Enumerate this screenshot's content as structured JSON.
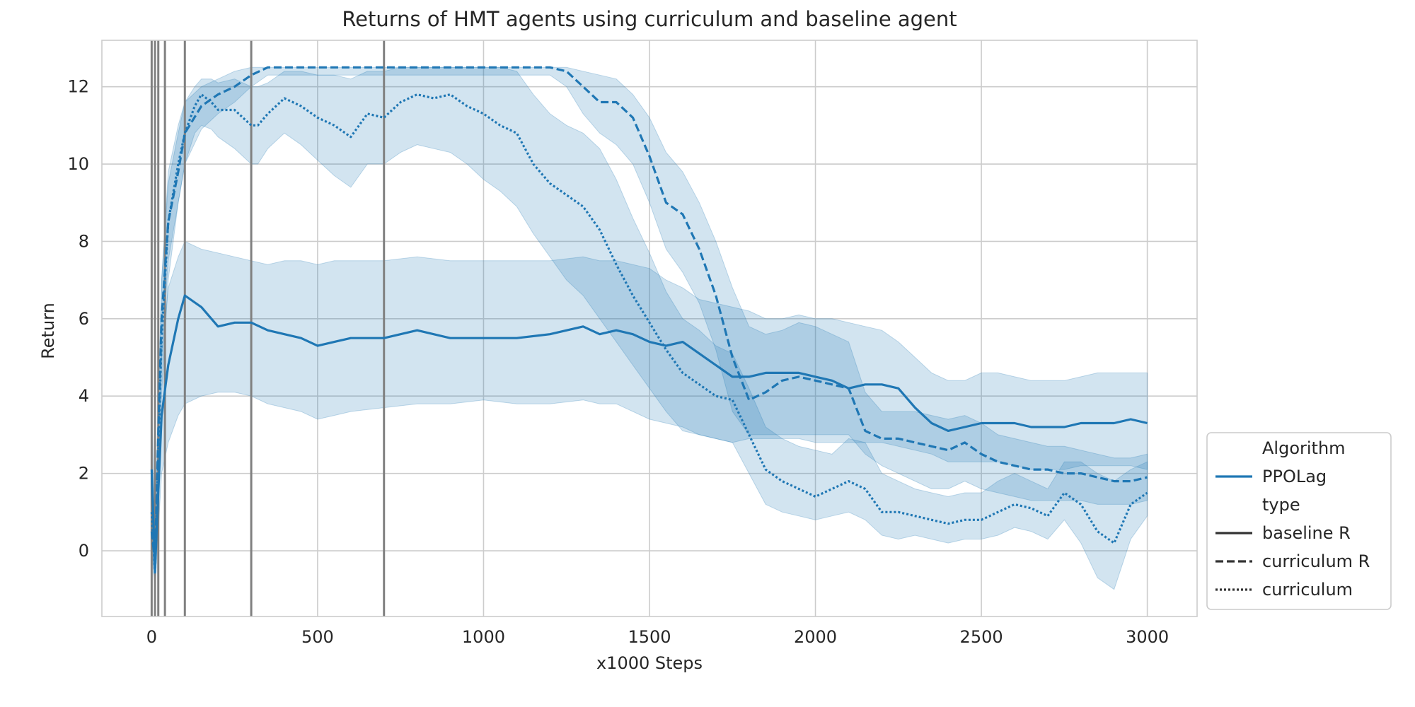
{
  "chart_data": {
    "type": "line",
    "title": "Returns of HMT agents using curriculum and baseline agent",
    "xlabel": "x1000 Steps",
    "ylabel": "Return",
    "xlim": [
      -150,
      3150
    ],
    "ylim": [
      -1.7,
      13.2
    ],
    "xticks": [
      0,
      500,
      1000,
      1500,
      2000,
      2500,
      3000
    ],
    "yticks": [
      0,
      2,
      4,
      6,
      8,
      10,
      12
    ],
    "xtick_labels": [
      "0",
      "500",
      "1000",
      "1500",
      "2000",
      "2500",
      "3000"
    ],
    "ytick_labels": [
      "0",
      "2",
      "4",
      "6",
      "8",
      "10",
      "12"
    ],
    "grid": true,
    "legend_position": "lower-right outside",
    "vertical_markers": [
      0,
      10,
      20,
      40,
      100,
      300,
      700
    ],
    "colors": {
      "series": "#1f77b4",
      "marker": "#808080",
      "grid": "#cccccc",
      "band": "#1f77b4"
    },
    "legend": [
      {
        "text": "Algorithm",
        "kind": "header"
      },
      {
        "text": "PPOLag",
        "kind": "color"
      },
      {
        "text": "type",
        "kind": "header"
      },
      {
        "text": "baseline R",
        "kind": "solid"
      },
      {
        "text": "curriculum R",
        "kind": "dashed"
      },
      {
        "text": "curriculum",
        "kind": "dotted"
      }
    ],
    "series": [
      {
        "name": "baseline R",
        "style": "solid",
        "x": [
          0,
          10,
          20,
          30,
          50,
          80,
          100,
          150,
          200,
          250,
          300,
          350,
          400,
          450,
          500,
          550,
          600,
          700,
          800,
          900,
          1000,
          1100,
          1200,
          1300,
          1350,
          1400,
          1450,
          1500,
          1550,
          1600,
          1650,
          1700,
          1750,
          1800,
          1850,
          1900,
          1950,
          2000,
          2050,
          2100,
          2150,
          2200,
          2250,
          2300,
          2350,
          2400,
          2450,
          2500,
          2550,
          2600,
          2650,
          2700,
          2750,
          2800,
          2850,
          2900,
          2950,
          3000
        ],
        "y": [
          2.1,
          -0.5,
          1.5,
          3.5,
          4.8,
          6.0,
          6.6,
          6.3,
          5.8,
          5.9,
          5.9,
          5.7,
          5.6,
          5.5,
          5.3,
          5.4,
          5.5,
          5.5,
          5.7,
          5.5,
          5.5,
          5.5,
          5.6,
          5.8,
          5.6,
          5.7,
          5.6,
          5.4,
          5.3,
          5.4,
          5.1,
          4.8,
          4.5,
          4.5,
          4.6,
          4.6,
          4.6,
          4.5,
          4.4,
          4.2,
          4.3,
          4.3,
          4.2,
          3.7,
          3.3,
          3.1,
          3.2,
          3.3,
          3.3,
          3.3,
          3.2,
          3.2,
          3.2,
          3.3,
          3.3,
          3.3,
          3.4,
          3.3
        ],
        "lower": [
          0.5,
          -1.0,
          0.5,
          2.0,
          2.8,
          3.5,
          3.8,
          4.0,
          4.1,
          4.1,
          4.0,
          3.8,
          3.7,
          3.6,
          3.4,
          3.5,
          3.6,
          3.7,
          3.8,
          3.8,
          3.9,
          3.8,
          3.8,
          3.9,
          3.8,
          3.8,
          3.6,
          3.4,
          3.3,
          3.2,
          3.0,
          2.9,
          2.8,
          2.9,
          2.9,
          2.9,
          2.9,
          2.8,
          2.8,
          2.8,
          2.8,
          2.8,
          2.7,
          2.6,
          2.5,
          2.3,
          2.3,
          2.3,
          2.3,
          2.2,
          2.1,
          2.1,
          2.1,
          2.2,
          2.2,
          2.2,
          2.2,
          2.1
        ],
        "upper": [
          3.8,
          0.5,
          3.0,
          5.0,
          6.8,
          7.6,
          8.0,
          7.8,
          7.7,
          7.6,
          7.5,
          7.4,
          7.5,
          7.5,
          7.4,
          7.5,
          7.5,
          7.5,
          7.6,
          7.5,
          7.5,
          7.5,
          7.5,
          7.6,
          7.5,
          7.5,
          7.4,
          7.3,
          7.0,
          6.8,
          6.5,
          6.4,
          6.3,
          6.2,
          6.0,
          6.0,
          6.1,
          6.0,
          6.0,
          5.9,
          5.8,
          5.7,
          5.4,
          5.0,
          4.6,
          4.4,
          4.4,
          4.6,
          4.6,
          4.5,
          4.4,
          4.4,
          4.4,
          4.5,
          4.6,
          4.6,
          4.6,
          4.6
        ]
      },
      {
        "name": "curriculum R",
        "style": "dashed",
        "x": [
          0,
          10,
          20,
          30,
          50,
          80,
          100,
          150,
          200,
          250,
          300,
          350,
          400,
          500,
          600,
          700,
          800,
          900,
          1000,
          1100,
          1200,
          1250,
          1300,
          1350,
          1400,
          1450,
          1500,
          1550,
          1600,
          1650,
          1700,
          1750,
          1800,
          1850,
          1900,
          1950,
          2000,
          2050,
          2100,
          2150,
          2200,
          2250,
          2300,
          2350,
          2400,
          2450,
          2500,
          2550,
          2600,
          2650,
          2700,
          2750,
          2800,
          2850,
          2900,
          2950,
          3000
        ],
        "y": [
          0.5,
          -0.3,
          3.0,
          6.0,
          8.5,
          9.8,
          10.8,
          11.5,
          11.8,
          12.0,
          12.3,
          12.5,
          12.5,
          12.5,
          12.5,
          12.5,
          12.5,
          12.5,
          12.5,
          12.5,
          12.5,
          12.4,
          12.0,
          11.6,
          11.6,
          11.2,
          10.2,
          9.0,
          8.7,
          7.8,
          6.6,
          5.0,
          3.9,
          4.1,
          4.4,
          4.5,
          4.4,
          4.3,
          4.2,
          3.1,
          2.9,
          2.9,
          2.8,
          2.7,
          2.6,
          2.8,
          2.5,
          2.3,
          2.2,
          2.1,
          2.1,
          2.0,
          2.0,
          1.9,
          1.8,
          1.8,
          1.9
        ],
        "lower": [
          0.0,
          -0.7,
          2.0,
          5.0,
          7.5,
          9.0,
          10.0,
          10.9,
          11.3,
          11.6,
          12.0,
          12.3,
          12.3,
          12.3,
          12.3,
          12.3,
          12.3,
          12.3,
          12.3,
          12.3,
          12.3,
          12.0,
          11.3,
          10.8,
          10.5,
          10.0,
          9.0,
          7.8,
          7.2,
          6.4,
          5.2,
          3.6,
          3.0,
          3.0,
          3.0,
          3.0,
          3.0,
          3.0,
          3.0,
          2.5,
          2.2,
          2.0,
          1.8,
          1.6,
          1.6,
          1.8,
          1.6,
          1.5,
          1.4,
          1.3,
          1.3,
          1.3,
          1.3,
          1.2,
          1.2,
          1.2,
          1.3
        ],
        "upper": [
          1.5,
          0.5,
          4.0,
          7.0,
          9.5,
          10.8,
          11.6,
          12.0,
          12.2,
          12.4,
          12.5,
          12.5,
          12.5,
          12.5,
          12.5,
          12.5,
          12.5,
          12.5,
          12.5,
          12.5,
          12.5,
          12.5,
          12.4,
          12.3,
          12.2,
          11.8,
          11.2,
          10.3,
          9.8,
          9.0,
          8.0,
          6.8,
          5.8,
          5.6,
          5.7,
          5.9,
          5.8,
          5.6,
          5.4,
          4.1,
          3.6,
          3.6,
          3.6,
          3.5,
          3.4,
          3.5,
          3.3,
          3.0,
          2.9,
          2.8,
          2.7,
          2.7,
          2.6,
          2.5,
          2.4,
          2.4,
          2.5
        ]
      },
      {
        "name": "curriculum",
        "style": "dotted",
        "x": [
          0,
          10,
          20,
          30,
          50,
          80,
          100,
          130,
          150,
          180,
          200,
          250,
          300,
          320,
          350,
          400,
          450,
          500,
          550,
          600,
          650,
          700,
          750,
          800,
          850,
          900,
          950,
          1000,
          1050,
          1100,
          1150,
          1200,
          1250,
          1300,
          1350,
          1400,
          1450,
          1500,
          1550,
          1600,
          1650,
          1700,
          1750,
          1800,
          1850,
          1900,
          1950,
          2000,
          2050,
          2100,
          2150,
          2200,
          2250,
          2300,
          2350,
          2400,
          2450,
          2500,
          2550,
          2600,
          2650,
          2700,
          2750,
          2800,
          2850,
          2900,
          2950,
          3000
        ],
        "y": [
          1.0,
          -0.6,
          2.5,
          5.5,
          8.5,
          10.0,
          10.8,
          11.5,
          11.8,
          11.6,
          11.4,
          11.4,
          11.0,
          11.0,
          11.3,
          11.7,
          11.5,
          11.2,
          11.0,
          10.7,
          11.3,
          11.2,
          11.6,
          11.8,
          11.7,
          11.8,
          11.5,
          11.3,
          11.0,
          10.8,
          10.0,
          9.5,
          9.2,
          8.9,
          8.3,
          7.4,
          6.6,
          5.9,
          5.2,
          4.6,
          4.3,
          4.0,
          3.9,
          3.0,
          2.1,
          1.8,
          1.6,
          1.4,
          1.6,
          1.8,
          1.6,
          1.0,
          1.0,
          0.9,
          0.8,
          0.7,
          0.8,
          0.8,
          1.0,
          1.2,
          1.1,
          0.9,
          1.5,
          1.2,
          0.5,
          0.2,
          1.2,
          1.5
        ],
        "lower": [
          0.0,
          -1.0,
          1.5,
          4.0,
          7.0,
          9.0,
          10.0,
          10.8,
          11.0,
          10.9,
          10.7,
          10.4,
          10.0,
          10.0,
          10.4,
          10.8,
          10.5,
          10.1,
          9.7,
          9.4,
          10.0,
          10.0,
          10.3,
          10.5,
          10.4,
          10.3,
          10.0,
          9.6,
          9.3,
          8.9,
          8.2,
          7.6,
          7.0,
          6.6,
          6.0,
          5.4,
          4.8,
          4.2,
          3.6,
          3.1,
          3.0,
          2.9,
          2.8,
          2.0,
          1.2,
          1.0,
          0.9,
          0.8,
          0.9,
          1.0,
          0.8,
          0.4,
          0.3,
          0.4,
          0.3,
          0.2,
          0.3,
          0.3,
          0.4,
          0.6,
          0.5,
          0.3,
          0.8,
          0.2,
          -0.7,
          -1.0,
          0.3,
          0.9
        ],
        "upper": [
          2.0,
          0.2,
          3.5,
          7.0,
          9.8,
          11.0,
          11.6,
          12.0,
          12.2,
          12.2,
          12.1,
          12.2,
          12.0,
          12.0,
          12.1,
          12.4,
          12.4,
          12.3,
          12.3,
          12.2,
          12.4,
          12.4,
          12.5,
          12.5,
          12.5,
          12.5,
          12.5,
          12.5,
          12.5,
          12.4,
          11.8,
          11.3,
          11.0,
          10.8,
          10.4,
          9.6,
          8.6,
          7.7,
          6.7,
          6.0,
          5.7,
          5.3,
          5.1,
          4.2,
          3.2,
          2.9,
          2.7,
          2.6,
          2.5,
          2.9,
          2.8,
          2.0,
          1.8,
          1.6,
          1.5,
          1.4,
          1.5,
          1.5,
          1.8,
          2.0,
          1.8,
          1.6,
          2.3,
          2.3,
          2.0,
          1.8,
          2.1,
          2.3
        ]
      }
    ]
  }
}
